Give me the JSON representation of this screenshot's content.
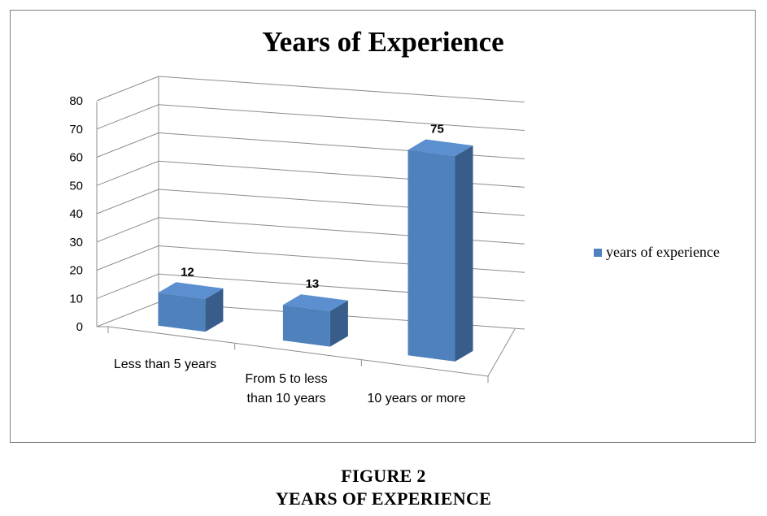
{
  "chart_data": {
    "type": "bar",
    "title": "Years of Experience",
    "categories": [
      "Less than 5 years",
      "From 5 to less than 10 years",
      "10 years or more"
    ],
    "category_lines": [
      [
        "Less than 5 years"
      ],
      [
        "From 5 to less",
        "than 10 years"
      ],
      [
        "10 years or more"
      ]
    ],
    "series": [
      {
        "name": "years of experience",
        "values": [
          12,
          13,
          75
        ]
      }
    ],
    "data_labels": [
      "12",
      "13",
      "75"
    ],
    "ylim": [
      0,
      80
    ],
    "yticks": [
      0,
      10,
      20,
      30,
      40,
      50,
      60,
      70,
      80
    ],
    "grid": true,
    "three_d": true,
    "legend_position": "right",
    "colors": {
      "bar_front": "#4f81bd",
      "bar_top": "#5b8fd0",
      "bar_side": "#385d8a",
      "grid": "#8c8c8c"
    }
  },
  "caption": {
    "line1": "FIGURE 2",
    "line2": "YEARS OF EXPERIENCE"
  }
}
